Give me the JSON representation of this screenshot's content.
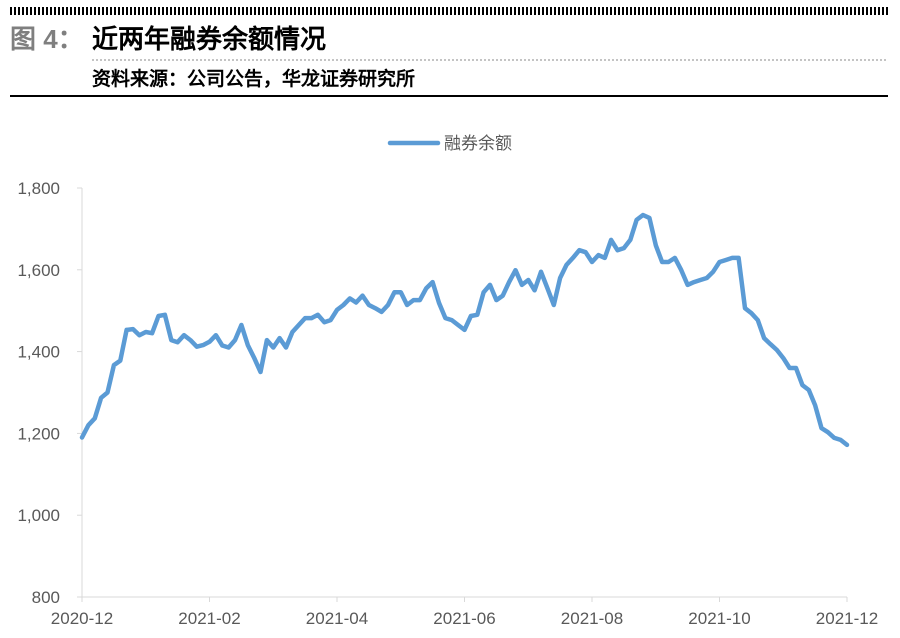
{
  "header": {
    "figure_label": "图 4：",
    "title": "近两年融券余额情况",
    "source": "资料来源：公司公告，华龙证券研究所"
  },
  "chart_data": {
    "type": "line",
    "categories": [
      "2020-12",
      null,
      null,
      null,
      null,
      null,
      null,
      null,
      null,
      null,
      null,
      null,
      null,
      null,
      null,
      null,
      null,
      null,
      null,
      null,
      "2021-02",
      null,
      null,
      null,
      null,
      null,
      null,
      null,
      null,
      null,
      null,
      null,
      null,
      null,
      null,
      null,
      null,
      null,
      null,
      null,
      "2021-04",
      null,
      null,
      null,
      null,
      null,
      null,
      null,
      null,
      null,
      null,
      null,
      null,
      null,
      null,
      null,
      null,
      null,
      null,
      null,
      "2021-06",
      null,
      null,
      null,
      null,
      null,
      null,
      null,
      null,
      null,
      null,
      null,
      null,
      null,
      null,
      null,
      null,
      null,
      null,
      null,
      "2021-08",
      null,
      null,
      null,
      null,
      null,
      null,
      null,
      null,
      null,
      null,
      null,
      null,
      null,
      null,
      null,
      null,
      null,
      null,
      null,
      "2021-10",
      null,
      null,
      null,
      null,
      null,
      null,
      null,
      null,
      null,
      null,
      null,
      null,
      null,
      null,
      null,
      null,
      null,
      null,
      null,
      "2021-12"
    ],
    "series": [
      {
        "name": "融券余额",
        "color": "#5b9bd5",
        "values": [
          1190,
          1220,
          1237,
          1287,
          1300,
          1367,
          1378,
          1453,
          1455,
          1440,
          1448,
          1445,
          1487,
          1490,
          1428,
          1423,
          1440,
          1428,
          1412,
          1416,
          1424,
          1440,
          1415,
          1410,
          1428,
          1465,
          1416,
          1385,
          1350,
          1428,
          1410,
          1433,
          1410,
          1448,
          1465,
          1482,
          1482,
          1490,
          1472,
          1477,
          1502,
          1514,
          1530,
          1520,
          1537,
          1514,
          1506,
          1497,
          1514,
          1545,
          1545,
          1514,
          1526,
          1526,
          1555,
          1570,
          1519,
          1482,
          1477,
          1465,
          1453,
          1487,
          1490,
          1545,
          1563,
          1526,
          1537,
          1570,
          1599,
          1563,
          1575,
          1550,
          1595,
          1555,
          1514,
          1580,
          1612,
          1629,
          1648,
          1643,
          1619,
          1636,
          1629,
          1673,
          1648,
          1653,
          1673,
          1722,
          1734,
          1727,
          1660,
          1619,
          1619,
          1629,
          1599,
          1563,
          1570,
          1575,
          1580,
          1595,
          1619,
          1624,
          1629,
          1629,
          1506,
          1494,
          1477,
          1433,
          1418,
          1404,
          1384,
          1360,
          1360,
          1318,
          1306,
          1269,
          1213,
          1203,
          1189,
          1184,
          1172
        ]
      }
    ],
    "ylim": [
      800,
      1800
    ],
    "yticks": [
      800,
      {
        "value": 1000,
        "label": "1,000"
      },
      {
        "value": 1200,
        "label": "1,200"
      },
      {
        "value": 1400,
        "label": "1,400"
      },
      {
        "value": 1600,
        "label": "1,600"
      },
      {
        "value": 1800,
        "label": "1,800"
      }
    ],
    "legend": "top"
  }
}
